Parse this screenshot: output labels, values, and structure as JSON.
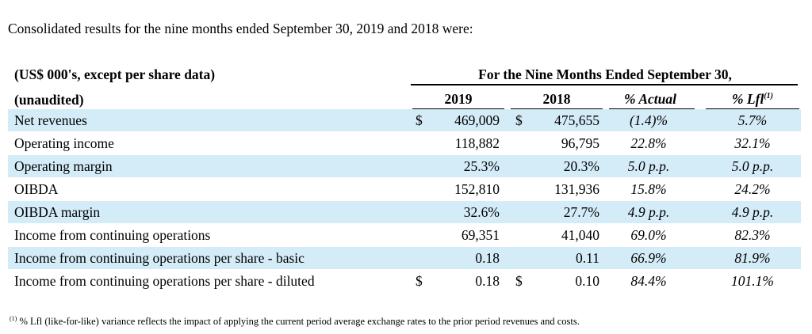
{
  "intro": "Consolidated results for the nine months ended September 30, 2019 and 2018 were:",
  "header": {
    "units": "(US$ 000's, except per share data)",
    "unaudited": "(unaudited)",
    "period_title": "For the Nine Months Ended September 30,",
    "col_2019": "2019",
    "col_2018": "2018",
    "col_actual": "% Actual",
    "col_lfl": "% Lfl",
    "col_lfl_note": "(1)"
  },
  "rows": [
    {
      "label": "Net revenues",
      "cur1": "$",
      "v2019": "469,009",
      "cur2": "$",
      "v2018": "475,655",
      "actual": "(1.4)%",
      "lfl": "5.7%"
    },
    {
      "label": "Operating income",
      "cur1": "",
      "v2019": "118,882",
      "cur2": "",
      "v2018": "96,795",
      "actual": "22.8%",
      "lfl": "32.1%"
    },
    {
      "label": "Operating margin",
      "cur1": "",
      "v2019": "25.3%",
      "cur2": "",
      "v2018": "20.3%",
      "actual": "5.0 p.p.",
      "lfl": "5.0 p.p."
    },
    {
      "label": "OIBDA",
      "cur1": "",
      "v2019": "152,810",
      "cur2": "",
      "v2018": "131,936",
      "actual": "15.8%",
      "lfl": "24.2%"
    },
    {
      "label": "OIBDA margin",
      "cur1": "",
      "v2019": "32.6%",
      "cur2": "",
      "v2018": "27.7%",
      "actual": "4.9 p.p.",
      "lfl": "4.9 p.p."
    },
    {
      "label": "Income from continuing operations",
      "cur1": "",
      "v2019": "69,351",
      "cur2": "",
      "v2018": "41,040",
      "actual": "69.0%",
      "lfl": "82.3%"
    },
    {
      "label": "Income from continuing operations per share - basic",
      "cur1": "",
      "v2019": "0.18",
      "cur2": "",
      "v2018": "0.11",
      "actual": "66.9%",
      "lfl": "81.9%"
    },
    {
      "label": "Income from continuing operations per share - diluted",
      "cur1": "$",
      "v2019": "0.18",
      "cur2": "$",
      "v2018": "0.10",
      "actual": "84.4%",
      "lfl": "101.1%"
    }
  ],
  "footnote": {
    "marker": "(1)",
    "text": "% Lfl (like-for-like) variance reflects the impact of applying the current period average exchange rates to the prior period revenues and costs."
  }
}
